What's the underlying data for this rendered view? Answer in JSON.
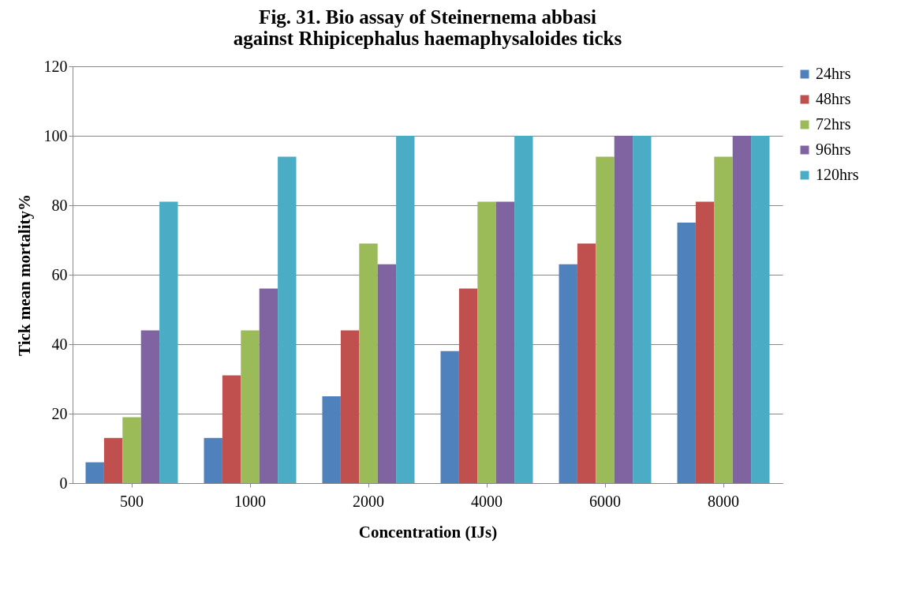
{
  "chart_data": {
    "type": "bar",
    "title": "Fig. 31. Bio assay of Steinernema abbasi against Rhipicephalus haemaphysaloides ticks",
    "xlabel": "Concentration (IJs)",
    "ylabel": "Tick mean mortality%",
    "categories": [
      "500",
      "1000",
      "2000",
      "4000",
      "6000",
      "8000"
    ],
    "series": [
      {
        "name": "24hrs",
        "color": "#4f81bd",
        "values": [
          6,
          13,
          25,
          38,
          63,
          75
        ]
      },
      {
        "name": "48hrs",
        "color": "#c0504d",
        "values": [
          13,
          31,
          44,
          56,
          69,
          81
        ]
      },
      {
        "name": "72hrs",
        "color": "#9bbb59",
        "values": [
          19,
          44,
          69,
          81,
          94,
          94
        ]
      },
      {
        "name": "96hrs",
        "color": "#8064a2",
        "values": [
          44,
          56,
          63,
          81,
          100,
          100
        ]
      },
      {
        "name": "120hrs",
        "color": "#4bacc6",
        "values": [
          81,
          94,
          100,
          100,
          100,
          100
        ]
      }
    ],
    "ylim": [
      0,
      120
    ],
    "yticks": [
      0,
      20,
      40,
      60,
      80,
      100,
      120
    ],
    "grid": "y",
    "legend": "right"
  }
}
